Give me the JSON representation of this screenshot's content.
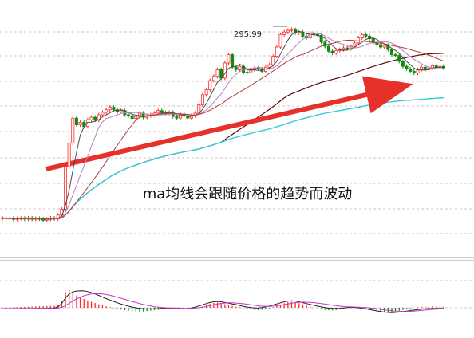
{
  "chart_data": {
    "type": "candlestick",
    "annotations": [
      {
        "text": "295.99",
        "target": "high-point"
      },
      {
        "text": "ma均线会跟随价格的趋势而波动"
      }
    ],
    "colors": {
      "up": "#ff2a2a",
      "down": "#108a10",
      "ma5": "#4a4a4a",
      "ma10": "#b87fb8",
      "ma20": "#b04040",
      "ma60": "#5a0a0a",
      "ma120": "#18a018",
      "ma250": "#30d0f0",
      "arrow": "#e8302a",
      "grid": "#c8c8c8",
      "dif": "#222222",
      "dea": "#cc33cc"
    },
    "price_range": [
      160,
      305
    ],
    "closes": [
      181.3,
      180.8,
      181.2,
      180.4,
      180.9,
      181.1,
      180.6,
      181.3,
      180.5,
      181.0,
      180.7,
      179.9,
      180.5,
      181.2,
      180.8,
      183.0,
      186.5,
      212.0,
      226.0,
      241.0,
      237.0,
      238.5,
      236.0,
      240.0,
      241.5,
      239.8,
      243.0,
      244.5,
      246.0,
      247.5,
      246.0,
      244.8,
      245.5,
      243.0,
      242.5,
      240.8,
      242.0,
      244.0,
      241.5,
      242.5,
      243.0,
      244.0,
      245.5,
      244.2,
      243.8,
      244.5,
      242.0,
      241.0,
      243.5,
      242.5,
      241.0,
      242.5,
      244.0,
      249.0,
      255.0,
      258.0,
      263.5,
      266.0,
      270.0,
      265.0,
      274.0,
      279.0,
      271.5,
      270.0,
      272.0,
      268.5,
      268.0,
      270.0,
      271.0,
      270.5,
      269.0,
      271.5,
      273.0,
      278.0,
      283.5,
      291.0,
      292.5,
      293.5,
      294.0,
      292.0,
      292.5,
      290.0,
      289.0,
      292.0,
      291.0,
      290.5,
      286.5,
      284.0,
      281.0,
      280.0,
      281.5,
      282.0,
      283.0,
      282.5,
      284.0,
      286.0,
      289.0,
      291.0,
      290.0,
      288.5,
      286.0,
      285.0,
      283.5,
      284.5,
      282.0,
      279.0,
      278.5,
      275.0,
      272.0,
      270.5,
      269.0,
      268.0,
      270.0,
      271.5,
      270.0,
      271.0,
      272.5,
      271.5,
      272.0,
      271.0
    ],
    "high_point": {
      "index": 76,
      "value": 295.99
    },
    "moving_averages": [
      {
        "name": "ma5",
        "period": 5
      },
      {
        "name": "ma10",
        "period": 10
      },
      {
        "name": "ma20",
        "period": 20
      },
      {
        "name": "ma60",
        "period": 60
      },
      {
        "name": "ma120",
        "period": 120
      },
      {
        "name": "ma250",
        "period": 250
      }
    ],
    "macd": {
      "histogram": [
        0.02,
        0.03,
        0.03,
        0.04,
        0.04,
        0.05,
        0.05,
        0.06,
        0.07,
        0.08,
        0.08,
        0.09,
        0.1,
        0.1,
        0.11,
        0.15,
        0.4,
        0.9,
        1.0,
        0.85,
        0.7,
        0.6,
        0.5,
        0.42,
        0.34,
        0.27,
        0.2,
        0.14,
        0.08,
        0.03,
        -0.02,
        -0.06,
        -0.1,
        -0.14,
        -0.17,
        -0.19,
        -0.21,
        -0.22,
        -0.21,
        -0.19,
        -0.17,
        -0.14,
        -0.12,
        -0.09,
        -0.06,
        -0.04,
        -0.02,
        -0.03,
        -0.05,
        -0.07,
        -0.08,
        -0.06,
        -0.03,
        0.02,
        0.08,
        0.15,
        0.22,
        0.28,
        0.3,
        0.26,
        0.2,
        0.14,
        0.1,
        0.06,
        0.03,
        -0.02,
        -0.06,
        -0.1,
        -0.12,
        -0.13,
        -0.11,
        -0.07,
        -0.03,
        0.03,
        0.1,
        0.18,
        0.26,
        0.32,
        0.34,
        0.31,
        0.26,
        0.2,
        0.14,
        0.08,
        0.03,
        -0.03,
        -0.08,
        -0.12,
        -0.14,
        -0.15,
        -0.13,
        -0.09,
        -0.05,
        0.0,
        0.04,
        0.06,
        0.05,
        0.02,
        -0.02,
        -0.07,
        -0.12,
        -0.17,
        -0.21,
        -0.24,
        -0.25,
        -0.24,
        -0.21,
        -0.17,
        -0.12,
        -0.08,
        -0.04,
        0.0,
        0.03,
        0.06,
        0.08,
        0.09,
        0.09,
        0.08,
        0.07,
        0.06
      ],
      "dif": [
        -0.05,
        -0.05,
        -0.05,
        -0.05,
        -0.05,
        -0.04,
        -0.04,
        -0.04,
        -0.04,
        -0.03,
        -0.03,
        -0.03,
        -0.03,
        -0.02,
        -0.02,
        0.05,
        0.25,
        0.55,
        0.78,
        0.9,
        0.95,
        0.97,
        0.96,
        0.92,
        0.86,
        0.78,
        0.7,
        0.61,
        0.52,
        0.44,
        0.36,
        0.28,
        0.21,
        0.15,
        0.09,
        0.04,
        0.0,
        -0.03,
        -0.06,
        -0.07,
        -0.07,
        -0.06,
        -0.05,
        -0.03,
        -0.02,
        -0.02,
        -0.03,
        -0.04,
        -0.05,
        -0.05,
        -0.04,
        -0.01,
        0.04,
        0.1,
        0.17,
        0.24,
        0.3,
        0.34,
        0.36,
        0.34,
        0.3,
        0.26,
        0.22,
        0.18,
        0.13,
        0.08,
        0.04,
        0.01,
        -0.01,
        -0.01,
        0.01,
        0.05,
        0.1,
        0.16,
        0.22,
        0.28,
        0.34,
        0.38,
        0.4,
        0.38,
        0.34,
        0.29,
        0.24,
        0.19,
        0.14,
        0.09,
        0.05,
        0.01,
        -0.02,
        -0.04,
        -0.04,
        -0.03,
        -0.01,
        0.01,
        0.02,
        0.02,
        0.0,
        -0.03,
        -0.06,
        -0.1,
        -0.14,
        -0.18,
        -0.22,
        -0.25,
        -0.27,
        -0.28,
        -0.27,
        -0.25,
        -0.22,
        -0.19,
        -0.16,
        -0.13,
        -0.1,
        -0.08,
        -0.06,
        -0.05,
        -0.04,
        -0.04,
        -0.04,
        -0.04
      ],
      "dea": [
        -0.04,
        -0.04,
        -0.04,
        -0.04,
        -0.04,
        -0.04,
        -0.04,
        -0.04,
        -0.04,
        -0.04,
        -0.04,
        -0.04,
        -0.03,
        -0.03,
        -0.03,
        -0.02,
        0.03,
        0.12,
        0.25,
        0.38,
        0.5,
        0.6,
        0.68,
        0.74,
        0.78,
        0.8,
        0.8,
        0.78,
        0.75,
        0.71,
        0.66,
        0.6,
        0.54,
        0.48,
        0.42,
        0.36,
        0.3,
        0.24,
        0.19,
        0.14,
        0.1,
        0.06,
        0.04,
        0.02,
        0.0,
        -0.01,
        -0.01,
        -0.02,
        -0.02,
        -0.03,
        -0.03,
        -0.03,
        -0.02,
        0.0,
        0.03,
        0.07,
        0.12,
        0.17,
        0.21,
        0.25,
        0.27,
        0.28,
        0.28,
        0.27,
        0.25,
        0.23,
        0.2,
        0.17,
        0.14,
        0.11,
        0.09,
        0.08,
        0.08,
        0.09,
        0.11,
        0.14,
        0.18,
        0.22,
        0.26,
        0.29,
        0.31,
        0.32,
        0.32,
        0.31,
        0.29,
        0.27,
        0.24,
        0.21,
        0.18,
        0.15,
        0.12,
        0.09,
        0.07,
        0.06,
        0.05,
        0.04,
        0.03,
        0.02,
        0.01,
        -0.01,
        -0.03,
        -0.06,
        -0.09,
        -0.12,
        -0.15,
        -0.17,
        -0.19,
        -0.2,
        -0.21,
        -0.21,
        -0.2,
        -0.19,
        -0.17,
        -0.15,
        -0.13,
        -0.11,
        -0.09,
        -0.08,
        -0.07,
        -0.06
      ]
    }
  }
}
